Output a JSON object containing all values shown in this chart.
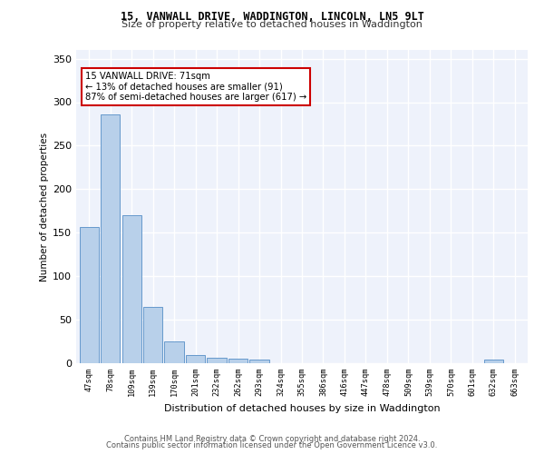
{
  "title1": "15, VANWALL DRIVE, WADDINGTON, LINCOLN, LN5 9LT",
  "title2": "Size of property relative to detached houses in Waddington",
  "xlabel": "Distribution of detached houses by size in Waddington",
  "ylabel": "Number of detached properties",
  "categories": [
    "47sqm",
    "78sqm",
    "109sqm",
    "139sqm",
    "170sqm",
    "201sqm",
    "232sqm",
    "262sqm",
    "293sqm",
    "324sqm",
    "355sqm",
    "386sqm",
    "416sqm",
    "447sqm",
    "478sqm",
    "509sqm",
    "539sqm",
    "570sqm",
    "601sqm",
    "632sqm",
    "663sqm"
  ],
  "values": [
    157,
    286,
    170,
    65,
    25,
    9,
    6,
    5,
    4,
    0,
    0,
    0,
    0,
    0,
    0,
    0,
    0,
    0,
    0,
    4,
    0
  ],
  "bar_color": "#b8d0ea",
  "bar_edge_color": "#6699cc",
  "bg_color": "#eef2fb",
  "grid_color": "#ffffff",
  "annotation_line1": "15 VANWALL DRIVE: 71sqm",
  "annotation_line2": "← 13% of detached houses are smaller (91)",
  "annotation_line3": "87% of semi-detached houses are larger (617) →",
  "annotation_box_color": "#cc0000",
  "annotation_box_bg": "#ffffff",
  "footer1": "Contains HM Land Registry data © Crown copyright and database right 2024.",
  "footer2": "Contains public sector information licensed under the Open Government Licence v3.0.",
  "ylim": [
    0,
    360
  ],
  "yticks": [
    0,
    50,
    100,
    150,
    200,
    250,
    300,
    350
  ]
}
